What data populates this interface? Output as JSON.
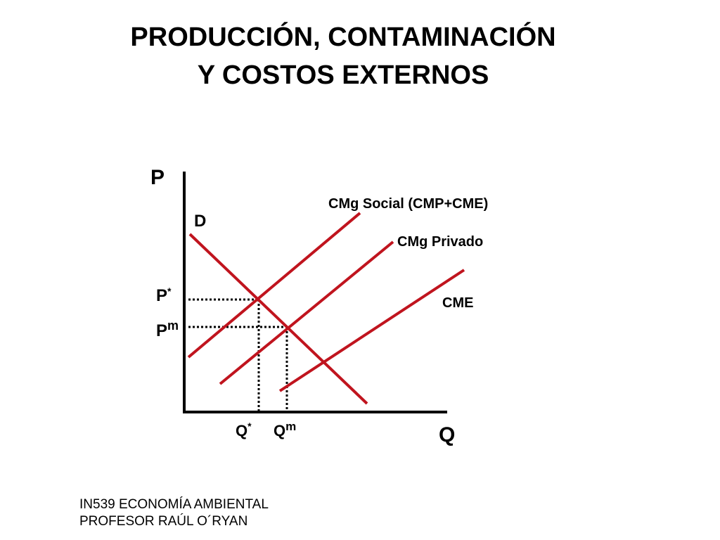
{
  "title": {
    "line1": "PRODUCCIÓN, CONTAMINACIÓN",
    "line2": "Y COSTOS EXTERNOS"
  },
  "diagram": {
    "axis_y_label": "P",
    "axis_x_label": "Q",
    "demand_label": "D",
    "social_cost_label": "CMg Social (CMP+CME)",
    "private_cost_label": "CMg Privado",
    "external_cost_label": "CME",
    "p_star": {
      "base": "P",
      "sup": "*"
    },
    "p_m": {
      "base": "P",
      "sup": "m"
    },
    "q_star": {
      "base": "Q",
      "sup": "*"
    },
    "q_m": {
      "base": "Q",
      "sup": "m"
    },
    "curve_color": "#c0141e",
    "axis_color": "#000000"
  },
  "footer": {
    "line1": "IN539 ECONOMÍA AMBIENTAL",
    "line2": "PROFESOR RAÚL O´RYAN"
  }
}
